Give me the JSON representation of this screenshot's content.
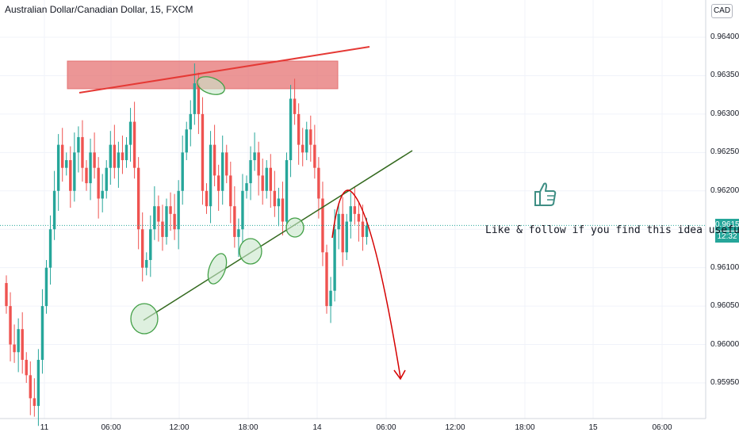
{
  "header": {
    "symbol_title": "Australian Dollar/Canadian Dollar, 15, FXCM",
    "currency": "CAD"
  },
  "price_scale": {
    "last_price": "0.96155",
    "countdown": "12:32",
    "ticks": [
      "0.96400",
      "0.96350",
      "0.96300",
      "0.96250",
      "0.96200",
      "0.96150",
      "0.96100",
      "0.96050",
      "0.96000",
      "0.95950"
    ]
  },
  "time_axis": {
    "ticks": [
      "11",
      "06:00",
      "12:00",
      "18:00",
      "14",
      "06:00",
      "12:00",
      "18:00",
      "15",
      "06:00"
    ]
  },
  "annotation": {
    "text": "Like & follow if you find this idea useful.",
    "icon": "thumbs-up-icon"
  },
  "colors": {
    "bull": "#26a69a",
    "bear": "#ef5350",
    "resistance_zone": "#e57373",
    "trendline_red": "#e53935",
    "trendline_green": "#33691e",
    "marker_fill": "#c8e6c9",
    "marker_stroke": "#43a047",
    "projection": "#d50000"
  },
  "chart_data": {
    "type": "candlestick",
    "symbol": "Australian Dollar/Canadian Dollar",
    "interval": "15",
    "source": "FXCM",
    "y_range": [
      0.9591,
      0.9643
    ],
    "last_price": 0.96155,
    "x_labels": [
      "11",
      "06:00",
      "12:00",
      "18:00",
      "14",
      "06:00",
      "12:00",
      "18:00",
      "15",
      "06:00"
    ],
    "series": [
      {
        "name": "price",
        "closes": [
          0.9605,
          0.96,
          0.9599,
          0.9602,
          0.9598,
          0.9596,
          0.9593,
          0.9592,
          0.9598,
          0.9605,
          0.961,
          0.9615,
          0.962,
          0.9626,
          0.9623,
          0.9624,
          0.962,
          0.9625,
          0.9627,
          0.9623,
          0.9621,
          0.9625,
          0.9623,
          0.9619,
          0.962,
          0.9623,
          0.9626,
          0.9623,
          0.9625,
          0.9624,
          0.9626,
          0.9629,
          0.9623,
          0.9615,
          0.961,
          0.9611,
          0.9615,
          0.9618,
          0.9616,
          0.9614,
          0.9618,
          0.9617,
          0.9615,
          0.962,
          0.9625,
          0.9628,
          0.963,
          0.9634,
          0.963,
          0.962,
          0.9618,
          0.9626,
          0.9622,
          0.962,
          0.9625,
          0.9622,
          0.9618,
          0.9614,
          0.9615,
          0.962,
          0.9621,
          0.9624,
          0.9625,
          0.9622,
          0.962,
          0.9623,
          0.962,
          0.9618,
          0.9619,
          0.9616,
          0.9624,
          0.9632,
          0.963,
          0.9626,
          0.9625,
          0.9628,
          0.9626,
          0.9623,
          0.9619,
          0.9612,
          0.9605,
          0.9607,
          0.9615,
          0.9617,
          0.9612,
          0.9616,
          0.9618,
          0.9617,
          0.9616,
          0.9614,
          0.96155
        ]
      }
    ],
    "annotations": {
      "resistance_zone": [
        0.96333,
        0.96369
      ],
      "markers": 6,
      "projection": "down"
    }
  }
}
